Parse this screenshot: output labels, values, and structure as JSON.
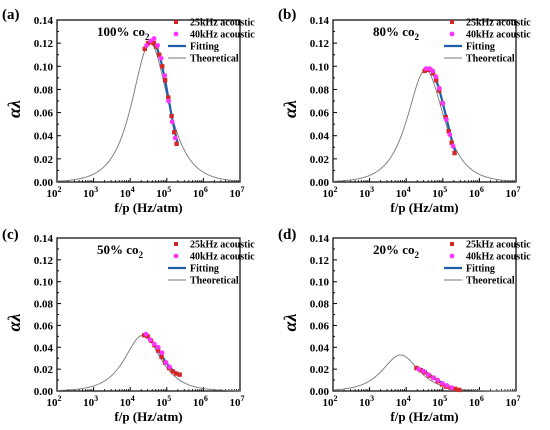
{
  "chart_data": [
    {
      "type": "scatter",
      "panel": "(a)",
      "condition_main": "100% co",
      "condition_sub": "2",
      "xlabel": "f/p (Hz/atm)",
      "ylabel": "αλ",
      "xscale": "log",
      "xlim": [
        100,
        10000000
      ],
      "ylim": [
        0,
        0.14
      ],
      "xticks": [
        {
          "value": 100,
          "mantissa": "10",
          "exp": "2"
        },
        {
          "value": 1000,
          "mantissa": "10",
          "exp": "3"
        },
        {
          "value": 10000,
          "mantissa": "10",
          "exp": "4"
        },
        {
          "value": 100000,
          "mantissa": "10",
          "exp": "5"
        },
        {
          "value": 1000000,
          "mantissa": "10",
          "exp": "6"
        },
        {
          "value": 10000000,
          "mantissa": "10",
          "exp": "7"
        }
      ],
      "yticks": [
        "0.00",
        "0.02",
        "0.04",
        "0.06",
        "0.08",
        "0.10",
        "0.12",
        "0.14"
      ],
      "legend_position": "top-right",
      "legend": [
        "25kHz acoustic",
        "40kHz acoustic",
        "Fitting",
        "Theoretical"
      ],
      "theoretical": {
        "peak_f": 35000,
        "peak_value": 0.12
      },
      "fitting": {
        "x": [
          24000,
          32000,
          40000,
          55000,
          70000,
          90000,
          110000,
          140000,
          170000,
          200000
        ],
        "y": [
          0.114,
          0.12,
          0.121,
          0.115,
          0.104,
          0.088,
          0.073,
          0.055,
          0.042,
          0.033
        ]
      },
      "series": [
        {
          "name": "25kHz acoustic",
          "x": [
            25000,
            31000,
            37000,
            44000,
            52000,
            62000,
            75000,
            90000,
            110000,
            135000,
            160000,
            185000
          ],
          "y": [
            0.115,
            0.12,
            0.121,
            0.12,
            0.117,
            0.11,
            0.1,
            0.088,
            0.073,
            0.057,
            0.043,
            0.033
          ]
        },
        {
          "name": "40kHz acoustic",
          "x": [
            28000,
            36000,
            45000,
            56000,
            70000,
            88000,
            112000,
            140000,
            170000
          ],
          "y": [
            0.118,
            0.122,
            0.124,
            0.118,
            0.107,
            0.092,
            0.07,
            0.052,
            0.038
          ]
        }
      ]
    },
    {
      "type": "scatter",
      "panel": "(b)",
      "condition_main": "80% co",
      "condition_sub": "2",
      "xlabel": "f/p (Hz/atm)",
      "ylabel": "αλ",
      "xscale": "log",
      "xlim": [
        100,
        10000000
      ],
      "ylim": [
        0,
        0.14
      ],
      "xticks": [
        {
          "value": 100,
          "mantissa": "10",
          "exp": "2"
        },
        {
          "value": 1000,
          "mantissa": "10",
          "exp": "3"
        },
        {
          "value": 10000,
          "mantissa": "10",
          "exp": "4"
        },
        {
          "value": 100000,
          "mantissa": "10",
          "exp": "5"
        },
        {
          "value": 1000000,
          "mantissa": "10",
          "exp": "6"
        },
        {
          "value": 10000000,
          "mantissa": "10",
          "exp": "7"
        }
      ],
      "yticks": [
        "0.00",
        "0.02",
        "0.04",
        "0.06",
        "0.08",
        "0.10",
        "0.12",
        "0.14"
      ],
      "legend_position": "top-right",
      "legend": [
        "25kHz acoustic",
        "40kHz acoustic",
        "Fitting",
        "Theoretical"
      ],
      "theoretical": {
        "peak_f": 34000,
        "peak_value": 0.097
      },
      "fitting": {
        "x": [
          30000,
          38000,
          48000,
          60000,
          75000,
          95000,
          120000,
          150000,
          180000,
          220000
        ],
        "y": [
          0.097,
          0.098,
          0.096,
          0.091,
          0.083,
          0.071,
          0.058,
          0.045,
          0.035,
          0.026
        ]
      },
      "series": [
        {
          "name": "25kHz acoustic",
          "x": [
            32000,
            38000,
            45000,
            54000,
            66000,
            80000,
            98000,
            120000,
            145000,
            175000,
            210000
          ],
          "y": [
            0.096,
            0.097,
            0.097,
            0.094,
            0.088,
            0.079,
            0.068,
            0.056,
            0.044,
            0.034,
            0.025
          ]
        },
        {
          "name": "40kHz acoustic",
          "x": [
            35000,
            43000,
            53000,
            65000,
            80000,
            100000,
            125000,
            155000,
            190000
          ],
          "y": [
            0.098,
            0.098,
            0.096,
            0.091,
            0.081,
            0.068,
            0.054,
            0.041,
            0.031
          ]
        }
      ]
    },
    {
      "type": "scatter",
      "panel": "(c)",
      "condition_main": "50% co",
      "condition_sub": "2",
      "xlabel": "f/p (Hz/atm)",
      "ylabel": "αλ",
      "xscale": "log",
      "xlim": [
        100,
        10000000
      ],
      "ylim": [
        0,
        0.14
      ],
      "xticks": [
        {
          "value": 100,
          "mantissa": "10",
          "exp": "2"
        },
        {
          "value": 1000,
          "mantissa": "10",
          "exp": "3"
        },
        {
          "value": 10000,
          "mantissa": "10",
          "exp": "4"
        },
        {
          "value": 100000,
          "mantissa": "10",
          "exp": "5"
        },
        {
          "value": 1000000,
          "mantissa": "10",
          "exp": "6"
        },
        {
          "value": 10000000,
          "mantissa": "10",
          "exp": "7"
        }
      ],
      "yticks": [
        "0.00",
        "0.02",
        "0.04",
        "0.06",
        "0.08",
        "0.10",
        "0.12",
        "0.14"
      ],
      "legend_position": "top-right",
      "legend": [
        "25kHz acoustic",
        "40kHz acoustic",
        "Fitting",
        "Theoretical"
      ],
      "theoretical": {
        "peak_f": 22000,
        "peak_value": 0.051
      },
      "fitting": {
        "x": [
          22000,
          30000,
          40000,
          52000,
          68000,
          88000,
          112000,
          145000,
          190000,
          240000
        ],
        "y": [
          0.051,
          0.049,
          0.045,
          0.04,
          0.034,
          0.028,
          0.023,
          0.019,
          0.016,
          0.014
        ]
      },
      "series": [
        {
          "name": "25kHz acoustic",
          "x": [
            24000,
            30000,
            37000,
            46000,
            58000,
            72000,
            90000,
            115000,
            145000,
            180000,
            225000
          ],
          "y": [
            0.051,
            0.05,
            0.046,
            0.042,
            0.037,
            0.031,
            0.026,
            0.021,
            0.018,
            0.016,
            0.015
          ]
        },
        {
          "name": "40kHz acoustic",
          "x": [
            27000,
            35000,
            45000,
            58000,
            74000,
            95000,
            120000
          ],
          "y": [
            0.052,
            0.047,
            0.043,
            0.04,
            0.035,
            0.026,
            0.022
          ]
        }
      ]
    },
    {
      "type": "scatter",
      "panel": "(d)",
      "condition_main": "20% co",
      "condition_sub": "2",
      "xlabel": "f/p (Hz/atm)",
      "ylabel": "αλ",
      "xscale": "log",
      "xlim": [
        100,
        10000000
      ],
      "ylim": [
        0,
        0.14
      ],
      "xticks": [
        {
          "value": 100,
          "mantissa": "10",
          "exp": "2"
        },
        {
          "value": 1000,
          "mantissa": "10",
          "exp": "3"
        },
        {
          "value": 10000,
          "mantissa": "10",
          "exp": "4"
        },
        {
          "value": 100000,
          "mantissa": "10",
          "exp": "5"
        },
        {
          "value": 1000000,
          "mantissa": "10",
          "exp": "6"
        },
        {
          "value": 10000000,
          "mantissa": "10",
          "exp": "7"
        }
      ],
      "yticks": [
        "0.00",
        "0.02",
        "0.04",
        "0.06",
        "0.08",
        "0.10",
        "0.12",
        "0.14"
      ],
      "legend_position": "top-right",
      "legend": [
        "25kHz acoustic",
        "40kHz acoustic",
        "Fitting",
        "Theoretical"
      ],
      "theoretical": {
        "peak_f": 7000,
        "peak_value": 0.033
      },
      "fitting": {
        "x": [
          18000,
          25000,
          35000,
          48000,
          65000,
          90000,
          125000,
          170000,
          230000,
          300000
        ],
        "y": [
          0.022,
          0.02,
          0.017,
          0.014,
          0.011,
          0.008,
          0.005,
          0.003,
          0.002,
          0.001
        ]
      },
      "series": [
        {
          "name": "25kHz acoustic",
          "x": [
            19000,
            25000,
            32000,
            42000,
            55000,
            72000,
            95000,
            125000,
            165000,
            215000,
            280000
          ],
          "y": [
            0.021,
            0.019,
            0.017,
            0.014,
            0.012,
            0.009,
            0.006,
            0.004,
            0.003,
            0.002,
            0.001
          ]
        },
        {
          "name": "40kHz acoustic",
          "x": [
            22000,
            30000,
            40000,
            54000,
            72000,
            98000,
            130000,
            175000
          ],
          "y": [
            0.02,
            0.018,
            0.015,
            0.012,
            0.01,
            0.007,
            0.005,
            0.003
          ]
        }
      ]
    }
  ],
  "colors": {
    "series_25k": "#d62728",
    "series_40k": "#ff33ff",
    "fitting": "#1f5fa8",
    "theoretical": "#777777",
    "axis": "#000000"
  }
}
